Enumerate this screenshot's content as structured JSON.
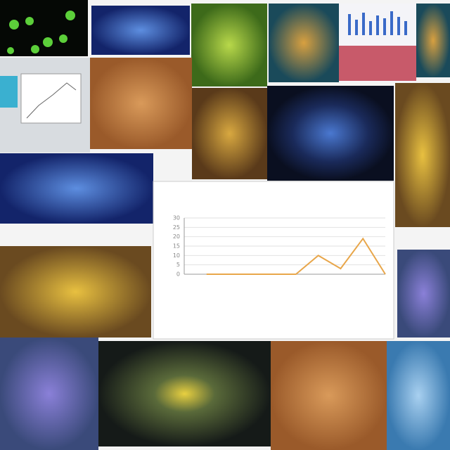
{
  "chart_data": {
    "type": "line",
    "categories": [
      null,
      null,
      null,
      null,
      null,
      null,
      null,
      null,
      null
    ],
    "values": [
      0,
      0,
      0,
      0,
      0,
      10,
      3,
      19,
      0
    ],
    "color": "#e8a64a",
    "ylim": [
      0,
      30
    ],
    "yticks": [
      0,
      5,
      10,
      15,
      20,
      25,
      30
    ],
    "grid": true
  }
}
